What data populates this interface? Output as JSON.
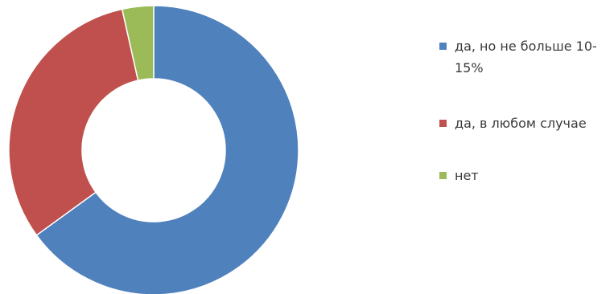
{
  "chart_data": {
    "type": "pie",
    "donut": true,
    "title": "",
    "legend_position": "right",
    "start_angle_deg": 0,
    "slices": [
      {
        "label": "да, но не больше 10-15%",
        "value": 65,
        "color": "#4f81bd"
      },
      {
        "label": "да, в любом случае",
        "value": 31.5,
        "color": "#c0504d"
      },
      {
        "label": "нет",
        "value": 3.5,
        "color": "#9bbb59"
      }
    ]
  }
}
